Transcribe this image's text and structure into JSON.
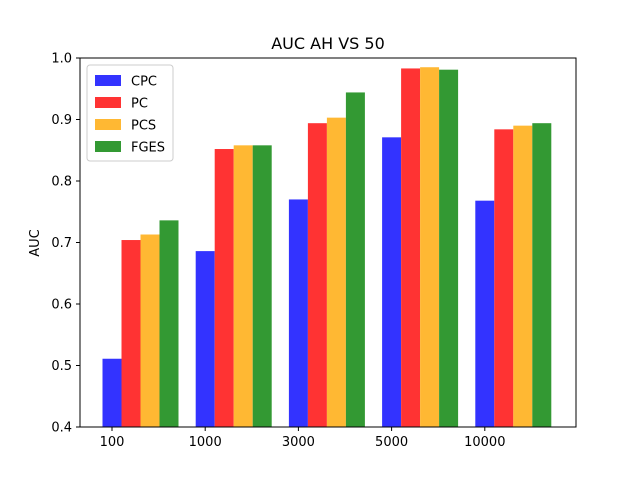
{
  "chart_data": {
    "type": "bar",
    "title": "AUC AH VS 50",
    "xlabel": "",
    "ylabel": "AUC",
    "categories": [
      "100",
      "1000",
      "3000",
      "5000",
      "10000"
    ],
    "series": [
      {
        "name": "CPC",
        "color": "#3333ff",
        "values": [
          0.511,
          0.686,
          0.77,
          0.871,
          0.768
        ]
      },
      {
        "name": "PC",
        "color": "#ff3333",
        "values": [
          0.704,
          0.852,
          0.894,
          0.983,
          0.884
        ]
      },
      {
        "name": "PCS",
        "color": "#ffb833",
        "values": [
          0.713,
          0.858,
          0.903,
          0.985,
          0.89
        ]
      },
      {
        "name": "FGES",
        "color": "#339933",
        "values": [
          0.736,
          0.858,
          0.944,
          0.981,
          0.894
        ]
      }
    ],
    "ylim": [
      0.4,
      1.0
    ],
    "yticks": [
      0.4,
      0.5,
      0.6,
      0.7,
      0.8,
      0.9,
      1.0
    ],
    "ytick_labels": [
      "0.4",
      "0.5",
      "0.6",
      "0.7",
      "0.8",
      "0.9",
      "1.0"
    ],
    "grid": false,
    "legend_position": "upper-left"
  }
}
